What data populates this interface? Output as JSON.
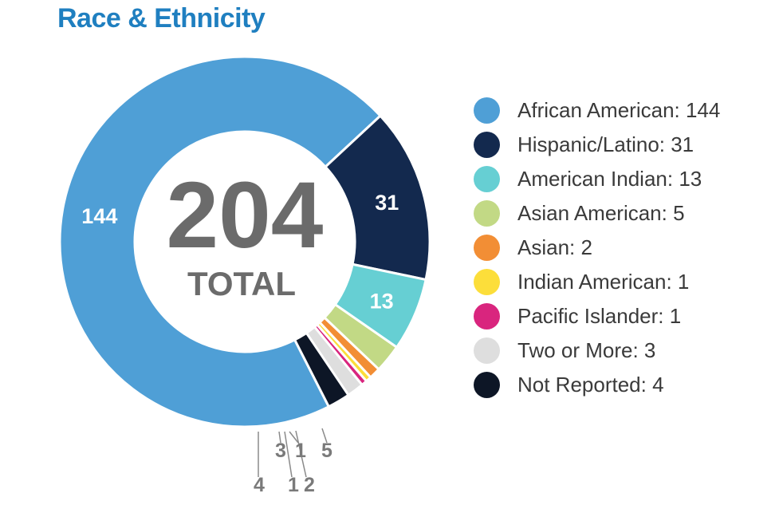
{
  "chart_data": {
    "type": "pie",
    "title": "Race & Ethnicity",
    "center_value": "204",
    "center_label": "TOTAL",
    "slices": [
      {
        "name": "African American",
        "value": 144,
        "legend": "African American: 144",
        "label": "144",
        "color": "#4f9fd6"
      },
      {
        "name": "Hispanic/Latino",
        "value": 31,
        "legend": "Hispanic/Latino: 31",
        "label": "31",
        "color": "#13294e"
      },
      {
        "name": "American Indian",
        "value": 13,
        "legend": "American Indian: 13",
        "label": "13",
        "color": "#66cfd3"
      },
      {
        "name": "Asian American",
        "value": 5,
        "legend": "Asian American: 5",
        "label": "5",
        "color": "#c2d985"
      },
      {
        "name": "Asian",
        "value": 2,
        "legend": "Asian: 2",
        "label": "2",
        "color": "#f28e35"
      },
      {
        "name": "Indian American",
        "value": 1,
        "legend": "Indian American: 1",
        "label": "1",
        "color": "#fcde3a"
      },
      {
        "name": "Pacific Islander",
        "value": 1,
        "legend": "Pacific Islander: 1",
        "label": "1",
        "color": "#d9257e"
      },
      {
        "name": "Two or More",
        "value": 3,
        "legend": "Two or More: 3",
        "label": "3",
        "color": "#dedede"
      },
      {
        "name": "Not Reported",
        "value": 4,
        "legend": "Not Reported: 4",
        "label": "4",
        "color": "#0d1626"
      }
    ]
  }
}
